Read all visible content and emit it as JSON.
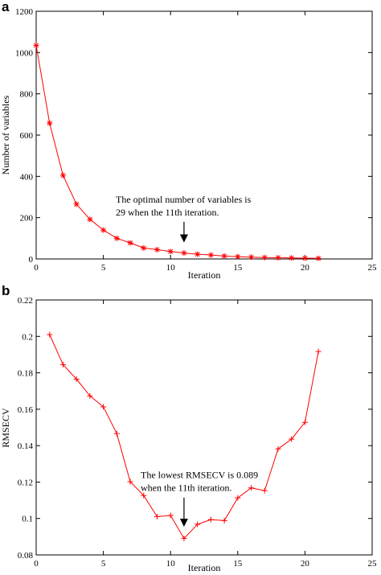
{
  "chart_data": [
    {
      "type": "line",
      "panel": "a",
      "xlabel": "Iteration",
      "ylabel": "Number of variables",
      "xlim": [
        0,
        25
      ],
      "ylim": [
        0,
        1200
      ],
      "xticks": [
        "0",
        "5",
        "10",
        "15",
        "20",
        "25"
      ],
      "yticks": [
        "0",
        "200",
        "400",
        "600",
        "800",
        "1000",
        "1200"
      ],
      "marker": "*",
      "color": "#ff0000",
      "x": [
        0,
        1,
        2,
        3,
        4,
        5,
        6,
        7,
        8,
        9,
        10,
        11,
        12,
        13,
        14,
        15,
        16,
        17,
        18,
        19,
        20,
        21
      ],
      "values": [
        1035,
        658,
        405,
        265,
        192,
        140,
        100,
        78,
        53,
        45,
        36,
        29,
        23,
        19,
        14,
        11,
        9,
        7,
        6,
        5,
        4,
        3
      ],
      "annotation": {
        "lines": [
          "The optimal number of variables is",
          "29 when the 11th iteration."
        ],
        "arrow_x": 11,
        "arrow_from_y": 180,
        "arrow_to_y": 45
      }
    },
    {
      "type": "line",
      "panel": "b",
      "xlabel": "Iteration",
      "ylabel": "RMSECV",
      "xlim": [
        0,
        25
      ],
      "ylim": [
        0.08,
        0.22
      ],
      "xticks": [
        "0",
        "5",
        "10",
        "15",
        "20",
        "25"
      ],
      "yticks": [
        "0.08",
        "0.1",
        "0.12",
        "0.14",
        "0.16",
        "0.18",
        "0.2",
        "0.22"
      ],
      "marker": "+",
      "color": "#ff0000",
      "x": [
        1,
        2,
        3,
        4,
        5,
        6,
        7,
        8,
        9,
        10,
        11,
        12,
        13,
        14,
        15,
        16,
        17,
        18,
        19,
        20,
        21
      ],
      "values": [
        0.201,
        0.1845,
        0.1765,
        0.1673,
        0.1613,
        0.1466,
        0.1202,
        0.1126,
        0.101,
        0.1017,
        0.089,
        0.0968,
        0.0994,
        0.0988,
        0.1113,
        0.1168,
        0.1153,
        0.1382,
        0.1436,
        0.1528,
        0.1917
      ],
      "annotation": {
        "lines": [
          "The lowest RMSECV is 0.089",
          "when the 11th iteration."
        ],
        "arrow_x": 11,
        "arrow_from_y": 0.1115,
        "arrow_to_y": 0.0915
      }
    }
  ]
}
